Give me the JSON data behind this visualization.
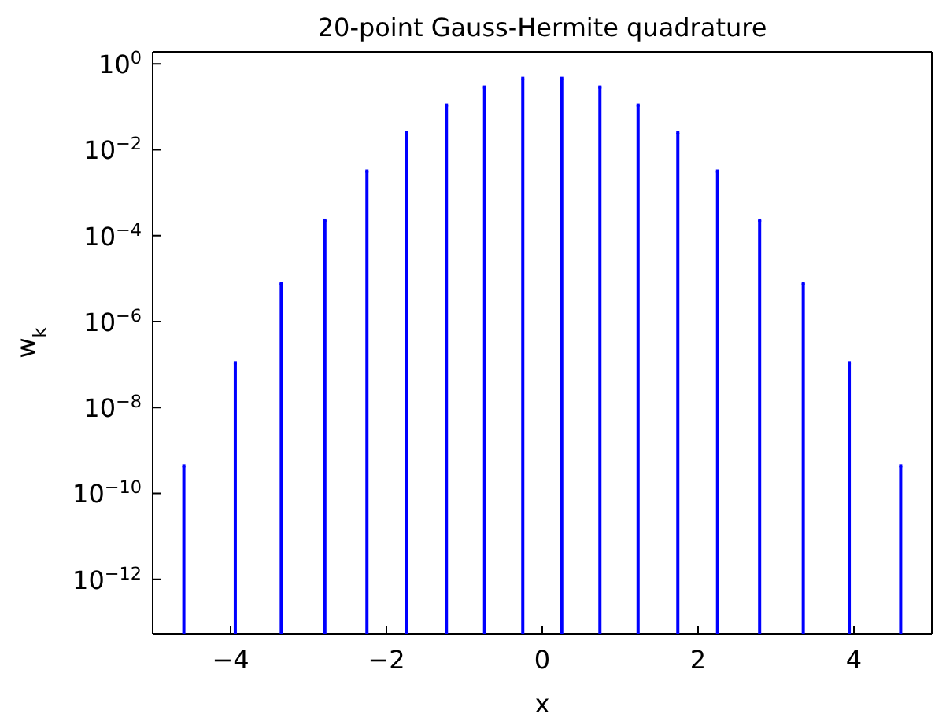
{
  "chart_data": {
    "type": "lollipop",
    "title": "20-point Gauss-Hermite quadrature",
    "xlabel": "x",
    "ylabel": "w$_{k}$",
    "x": [
      -4.6,
      -3.94,
      -3.35,
      -2.79,
      -2.25,
      -1.74,
      -1.23,
      -0.74,
      -0.25,
      0.25,
      0.74,
      1.23,
      1.74,
      2.25,
      2.79,
      3.35,
      3.94,
      4.6
    ],
    "series": [
      {
        "color": "#0000ff",
        "values": [
          4.4e-10,
          1.1e-07,
          7.8e-06,
          0.00023,
          0.0032,
          0.025,
          0.11,
          0.29,
          0.46,
          0.46,
          0.29,
          0.11,
          0.025,
          0.0032,
          0.00023,
          7.8e-06,
          1.1e-07,
          4.4e-10
        ]
      }
    ],
    "log": "y",
    "xlim": [
      -5,
      5
    ],
    "ylim": [
      5.4e-14,
      1.9
    ],
    "xticks": [
      {
        "value": -4,
        "label": "−4"
      },
      {
        "value": -2,
        "label": "−2"
      },
      0,
      2,
      4
    ],
    "yticks": [
      {
        "value": 1,
        "label": "10$^{0}$"
      },
      {
        "value": 0.01,
        "label": "10$^{−2}$"
      },
      {
        "value": 0.0001,
        "label": "10$^{−4}$"
      },
      {
        "value": 1e-06,
        "label": "10$^{−6}$"
      },
      {
        "value": 1e-08,
        "label": "10$^{−8}$"
      },
      {
        "value": 1e-10,
        "label": "10$^{−10}$"
      },
      {
        "value": 1e-12,
        "label": "10$^{−12}$"
      }
    ],
    "grid": false
  }
}
